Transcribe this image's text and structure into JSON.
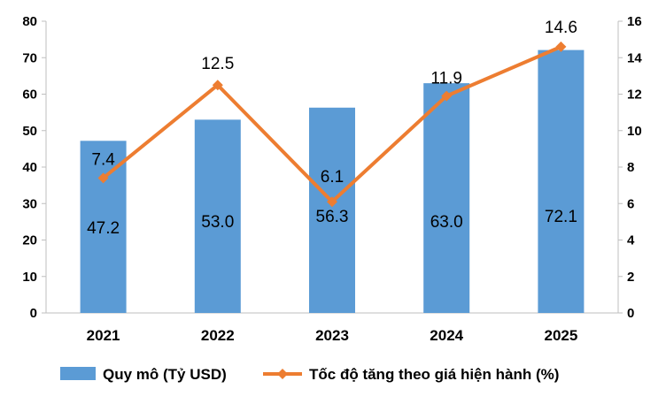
{
  "chart_data": {
    "type": "bar+line",
    "categories": [
      "2021",
      "2022",
      "2023",
      "2024",
      "2025"
    ],
    "series": [
      {
        "name": "Quy mô (Tỷ USD)",
        "type": "bar",
        "axis": "left",
        "values": [
          47.2,
          53.0,
          56.3,
          63.0,
          72.1
        ],
        "labels": [
          "47.2",
          "53.0",
          "56.3",
          "63.0",
          "72.1"
        ],
        "color": "#5B9BD5"
      },
      {
        "name": "Tốc độ tăng theo giá hiện hành (%)",
        "type": "line",
        "axis": "right",
        "values": [
          7.4,
          12.5,
          6.1,
          11.9,
          14.6
        ],
        "labels": [
          "7.4",
          "12.5",
          "6.1",
          "11.9",
          "14.6"
        ],
        "color": "#ED7D31"
      }
    ],
    "y_left": {
      "ylim": [
        0,
        80
      ],
      "ticks": [
        "0",
        "10",
        "20",
        "30",
        "40",
        "50",
        "60",
        "70",
        "80"
      ]
    },
    "y_right": {
      "ylim": [
        0,
        16
      ],
      "ticks": [
        "0",
        "2",
        "4",
        "6",
        "8",
        "10",
        "12",
        "14",
        "16"
      ]
    },
    "grid": false,
    "legend": "bottom"
  }
}
